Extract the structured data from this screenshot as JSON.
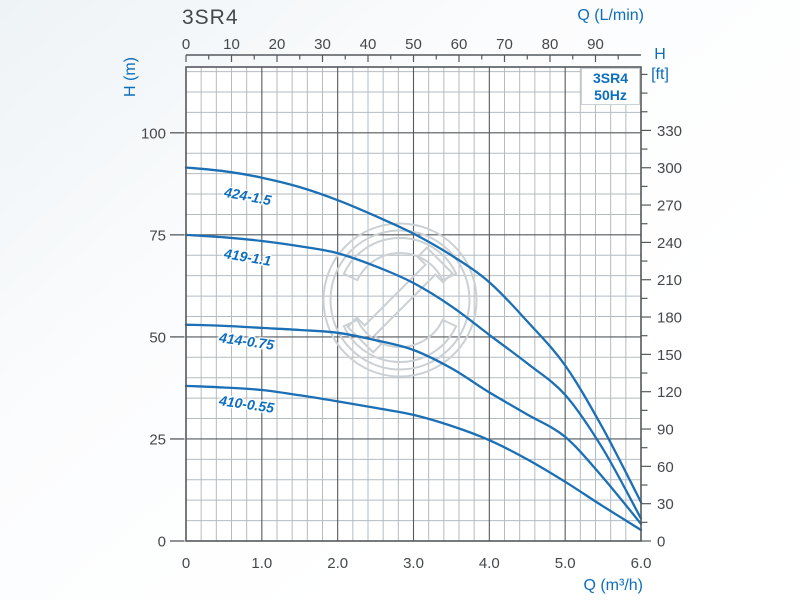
{
  "chart_data": {
    "type": "line",
    "title": "3SR4",
    "legend": {
      "position": "top-right-inside",
      "lines": [
        "3SR4",
        "50Hz"
      ]
    },
    "axes": {
      "top": {
        "label": "Q (L/min)",
        "unit": "L/min",
        "range": [
          0,
          100
        ],
        "major_ticks": [
          0,
          10,
          20,
          30,
          40,
          50,
          60,
          70,
          80,
          90
        ],
        "minor_step": 5
      },
      "bottom": {
        "label": "Q (m³/h)",
        "unit": "m³/h",
        "range": [
          0,
          6
        ],
        "tick_labels": [
          "0",
          "1.0",
          "2.0",
          "3.0",
          "4.0",
          "5.0",
          "6.0"
        ],
        "minor_step": 0.2
      },
      "left": {
        "label": "H (m)",
        "unit": "m",
        "range": [
          0,
          116
        ],
        "major_ticks": [
          0,
          25,
          50,
          75,
          100
        ],
        "minor_step": 5
      },
      "right": {
        "label": "H",
        "label_unit": "[ft]",
        "unit": "ft",
        "range": [
          0,
          380
        ],
        "major_ticks": [
          0,
          30,
          60,
          90,
          120,
          150,
          180,
          210,
          240,
          270,
          300,
          330
        ],
        "minor_step": 15
      }
    },
    "grid": true,
    "series": [
      {
        "name": "424-1.5",
        "x_m3h": [
          0,
          0.5,
          1,
          1.5,
          2,
          2.5,
          3,
          3.5,
          4,
          4.5,
          5,
          5.5,
          6
        ],
        "head_m": [
          91.5,
          90.6,
          89.0,
          86.7,
          83.5,
          79.6,
          75.3,
          70.0,
          63.4,
          53.8,
          43.0,
          27.5,
          9.5
        ]
      },
      {
        "name": "419-1.1",
        "x_m3h": [
          0,
          0.5,
          1,
          1.5,
          2,
          2.5,
          3,
          3.5,
          4,
          4.5,
          5,
          5.5,
          6
        ],
        "head_m": [
          75.0,
          74.4,
          73.5,
          72.2,
          70.5,
          67.3,
          63.2,
          57.5,
          50.5,
          43.5,
          35.8,
          22.5,
          5.5
        ]
      },
      {
        "name": "414-0.75",
        "x_m3h": [
          0,
          0.5,
          1,
          1.5,
          2,
          2.5,
          3,
          3.5,
          4,
          4.5,
          5,
          5.5,
          6
        ],
        "head_m": [
          53.0,
          52.7,
          52.2,
          51.7,
          51.0,
          49.2,
          46.8,
          42.3,
          36.4,
          31.0,
          25.5,
          15.5,
          4.2
        ]
      },
      {
        "name": "410-0.55",
        "x_m3h": [
          0,
          0.5,
          1,
          1.5,
          2,
          2.5,
          3,
          3.5,
          4,
          4.5,
          5,
          5.5,
          6
        ],
        "head_m": [
          38.0,
          37.6,
          37.0,
          35.7,
          34.2,
          32.6,
          30.9,
          28.2,
          24.7,
          20.0,
          14.5,
          8.5,
          2.7
        ]
      }
    ]
  },
  "watermark": {
    "name": "pump-brand-logo"
  },
  "colors": {
    "curve": "#1b6fb5",
    "blue_text": "#0c6ebd",
    "dark_text": "#45484b",
    "grid_minor": "#b4bbc1",
    "grid_major": "#55595d",
    "watermark": "#cbd0d4",
    "legend_border": "#ccd1d5",
    "plot_bg": "#ffffff"
  }
}
